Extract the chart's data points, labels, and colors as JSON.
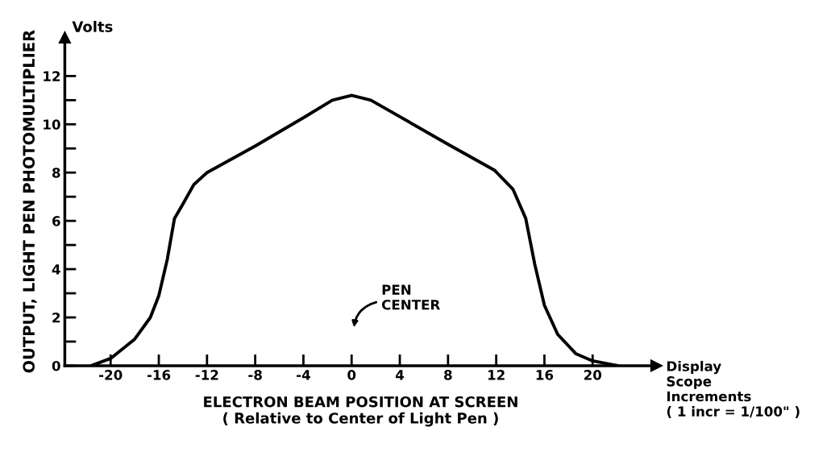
{
  "chart_data": {
    "type": "line",
    "xlabel": "ELECTRON BEAM POSITION AT SCREEN\n( Relative to Center of Light Pen )",
    "ylabel": "OUTPUT, LIGHT PEN PHOTOMULTIPLIER",
    "x": [
      -21.6,
      -20,
      -18,
      -16.7,
      -16,
      -15.3,
      -14.7,
      -14,
      -13.1,
      -12,
      -8,
      -3.9,
      -1.6,
      0,
      1.6,
      7.9,
      11.85,
      13.4,
      14.45,
      15.2,
      16,
      17.1,
      18.6,
      20,
      22.1
    ],
    "series": [
      {
        "color": "#000000",
        "values": [
          0,
          0.3,
          1.1,
          2.0,
          2.9,
          4.4,
          6.1,
          6.7,
          7.5,
          8.0,
          9.1,
          10.3,
          11.0,
          11.2,
          11.0,
          9.2,
          8.1,
          7.3,
          6.1,
          4.2,
          2.5,
          1.3,
          0.5,
          0.2,
          0
        ]
      }
    ],
    "xlim": [
      -23.8,
      25.3
    ],
    "ylim": [
      0,
      13.6
    ],
    "xticks": [
      -20,
      -16,
      -12,
      -8,
      -4,
      0,
      4,
      8,
      12,
      16,
      20
    ],
    "yticks": [
      0,
      {
        "value": 1,
        "label": null
      },
      2,
      {
        "value": 3,
        "label": null
      },
      4,
      {
        "value": 5,
        "label": null
      },
      6,
      {
        "value": 7,
        "label": null
      },
      8,
      {
        "value": 9,
        "label": null
      },
      10,
      {
        "value": 11,
        "label": null
      },
      12
    ],
    "grid": false,
    "legend": false,
    "marker": "none",
    "line_style": "solid",
    "annotations": [
      "PEN\nCENTER",
      "Volts",
      "Display\nScope\nIncrements\n( 1 incr = 1/100\" )"
    ]
  }
}
